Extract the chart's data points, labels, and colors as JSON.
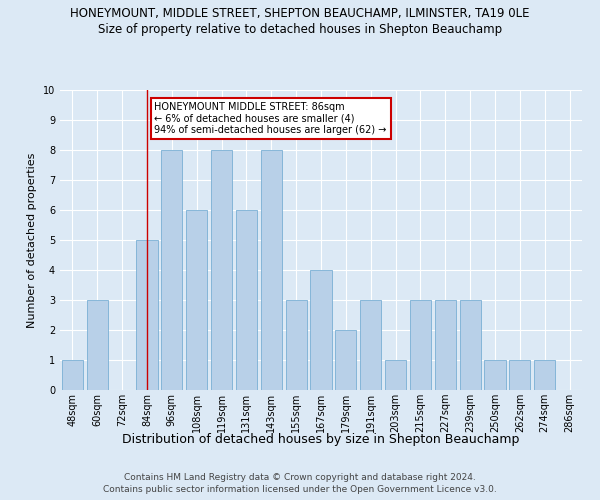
{
  "title": "HONEYMOUNT, MIDDLE STREET, SHEPTON BEAUCHAMP, ILMINSTER, TA19 0LE",
  "subtitle": "Size of property relative to detached houses in Shepton Beauchamp",
  "xlabel": "Distribution of detached houses by size in Shepton Beauchamp",
  "ylabel": "Number of detached properties",
  "categories": [
    "48sqm",
    "60sqm",
    "72sqm",
    "84sqm",
    "96sqm",
    "108sqm",
    "119sqm",
    "131sqm",
    "143sqm",
    "155sqm",
    "167sqm",
    "179sqm",
    "191sqm",
    "203sqm",
    "215sqm",
    "227sqm",
    "239sqm",
    "250sqm",
    "262sqm",
    "274sqm",
    "286sqm"
  ],
  "values": [
    1,
    3,
    0,
    5,
    8,
    6,
    8,
    6,
    8,
    3,
    4,
    2,
    3,
    1,
    3,
    3,
    3,
    1,
    1,
    1,
    0
  ],
  "bar_color": "#b8d0e8",
  "bar_edge_color": "#7aafd4",
  "marker_index": 3,
  "marker_color": "#cc0000",
  "annotation_title": "HONEYMOUNT MIDDLE STREET: 86sqm",
  "annotation_line1": "← 6% of detached houses are smaller (4)",
  "annotation_line2": "94% of semi-detached houses are larger (62) →",
  "annotation_box_color": "#ffffff",
  "annotation_box_edge": "#cc0000",
  "ylim": [
    0,
    10
  ],
  "yticks": [
    0,
    1,
    2,
    3,
    4,
    5,
    6,
    7,
    8,
    9,
    10
  ],
  "footer1": "Contains HM Land Registry data © Crown copyright and database right 2024.",
  "footer2": "Contains public sector information licensed under the Open Government Licence v3.0.",
  "background_color": "#dce9f5",
  "plot_bg_color": "#dce9f5",
  "title_fontsize": 8.5,
  "subtitle_fontsize": 8.5,
  "xlabel_fontsize": 9,
  "ylabel_fontsize": 8,
  "tick_fontsize": 7,
  "footer_fontsize": 6.5
}
